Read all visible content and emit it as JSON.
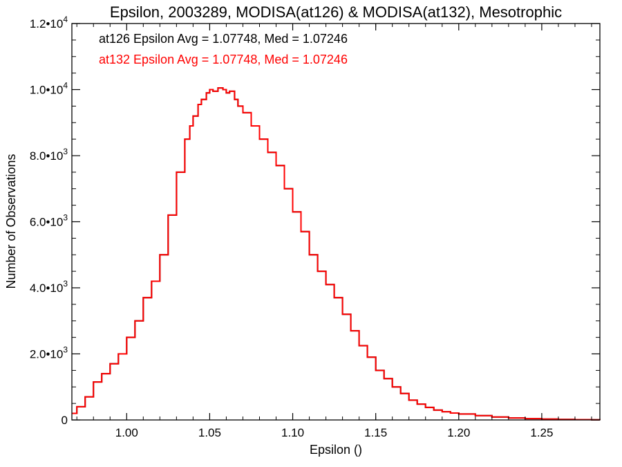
{
  "chart_data": {
    "type": "line",
    "title": "Epsilon, 2003289, MODISA(at126) & MODISA(at132), Mesotrophic",
    "xlabel": "Epsilon ()",
    "ylabel": "Number of Observations",
    "xlim": [
      0.967,
      1.285
    ],
    "ylim": [
      0,
      12000
    ],
    "grid": false,
    "x_ticks": [
      1.0,
      1.05,
      1.1,
      1.15,
      1.2,
      1.25
    ],
    "x_tick_labels": [
      "1.00",
      "1.05",
      "1.10",
      "1.15",
      "1.20",
      "1.25"
    ],
    "y_ticks": [
      {
        "value": 0,
        "mant": "0",
        "exp": ""
      },
      {
        "value": 2000,
        "mant": "2.0•1",
        "exp": "3"
      },
      {
        "value": 4000,
        "mant": "4.0•1",
        "exp": "3"
      },
      {
        "value": 6000,
        "mant": "6.0•1",
        "exp": "3"
      },
      {
        "value": 8000,
        "mant": "8.0•1",
        "exp": "3"
      },
      {
        "value": 10000,
        "mant": "1.0•1",
        "exp": "4"
      },
      {
        "value": 12000,
        "mant": "1.2•1",
        "exp": "4"
      }
    ],
    "annotations": [
      {
        "text": "at126 Epsilon Avg = 1.07748, Med = 1.07246",
        "color": "#000000"
      },
      {
        "text": "at132 Epsilon Avg = 1.07748, Med = 1.07246",
        "color": "#ff0000"
      }
    ],
    "series": [
      {
        "color": "#000000",
        "x": [
          0.967,
          0.97,
          0.975,
          0.98,
          0.985,
          0.99,
          0.995,
          1.0,
          1.005,
          1.01,
          1.015,
          1.02,
          1.025,
          1.03,
          1.035,
          1.038,
          1.04,
          1.043,
          1.045,
          1.048,
          1.05,
          1.052,
          1.055,
          1.058,
          1.06,
          1.062,
          1.065,
          1.067,
          1.07,
          1.075,
          1.08,
          1.085,
          1.09,
          1.095,
          1.1,
          1.105,
          1.11,
          1.115,
          1.12,
          1.125,
          1.13,
          1.135,
          1.14,
          1.145,
          1.15,
          1.155,
          1.16,
          1.165,
          1.17,
          1.175,
          1.18,
          1.185,
          1.19,
          1.195,
          1.2,
          1.21,
          1.22,
          1.23,
          1.24,
          1.25,
          1.26,
          1.27,
          1.28,
          1.285
        ],
        "y": [
          200,
          400,
          700,
          1150,
          1400,
          1700,
          2000,
          2500,
          3000,
          3700,
          4200,
          5000,
          6200,
          7500,
          8500,
          8900,
          9200,
          9550,
          9700,
          9900,
          10000,
          9950,
          10050,
          10000,
          9900,
          9950,
          9700,
          9500,
          9300,
          8900,
          8500,
          8100,
          7700,
          7000,
          6300,
          5700,
          5000,
          4500,
          4100,
          3700,
          3200,
          2700,
          2250,
          1900,
          1500,
          1250,
          1000,
          800,
          600,
          480,
          380,
          300,
          250,
          210,
          180,
          130,
          90,
          60,
          40,
          25,
          15,
          10,
          5,
          3
        ]
      },
      {
        "color": "#ff0000",
        "x": [
          0.967,
          0.97,
          0.975,
          0.98,
          0.985,
          0.99,
          0.995,
          1.0,
          1.005,
          1.01,
          1.015,
          1.02,
          1.025,
          1.03,
          1.035,
          1.038,
          1.04,
          1.043,
          1.045,
          1.048,
          1.05,
          1.052,
          1.055,
          1.058,
          1.06,
          1.062,
          1.065,
          1.067,
          1.07,
          1.075,
          1.08,
          1.085,
          1.09,
          1.095,
          1.1,
          1.105,
          1.11,
          1.115,
          1.12,
          1.125,
          1.13,
          1.135,
          1.14,
          1.145,
          1.15,
          1.155,
          1.16,
          1.165,
          1.17,
          1.175,
          1.18,
          1.185,
          1.19,
          1.195,
          1.2,
          1.21,
          1.22,
          1.23,
          1.24,
          1.25,
          1.26,
          1.27,
          1.28,
          1.285
        ],
        "y": [
          200,
          400,
          700,
          1150,
          1400,
          1700,
          2000,
          2500,
          3000,
          3700,
          4200,
          5000,
          6200,
          7500,
          8500,
          8900,
          9200,
          9550,
          9700,
          9900,
          10000,
          9950,
          10050,
          10000,
          9900,
          9950,
          9700,
          9500,
          9300,
          8900,
          8500,
          8100,
          7700,
          7000,
          6300,
          5700,
          5000,
          4500,
          4100,
          3700,
          3200,
          2700,
          2250,
          1900,
          1500,
          1250,
          1000,
          800,
          600,
          480,
          380,
          300,
          250,
          210,
          180,
          130,
          90,
          60,
          40,
          25,
          15,
          10,
          5,
          3
        ]
      }
    ]
  }
}
